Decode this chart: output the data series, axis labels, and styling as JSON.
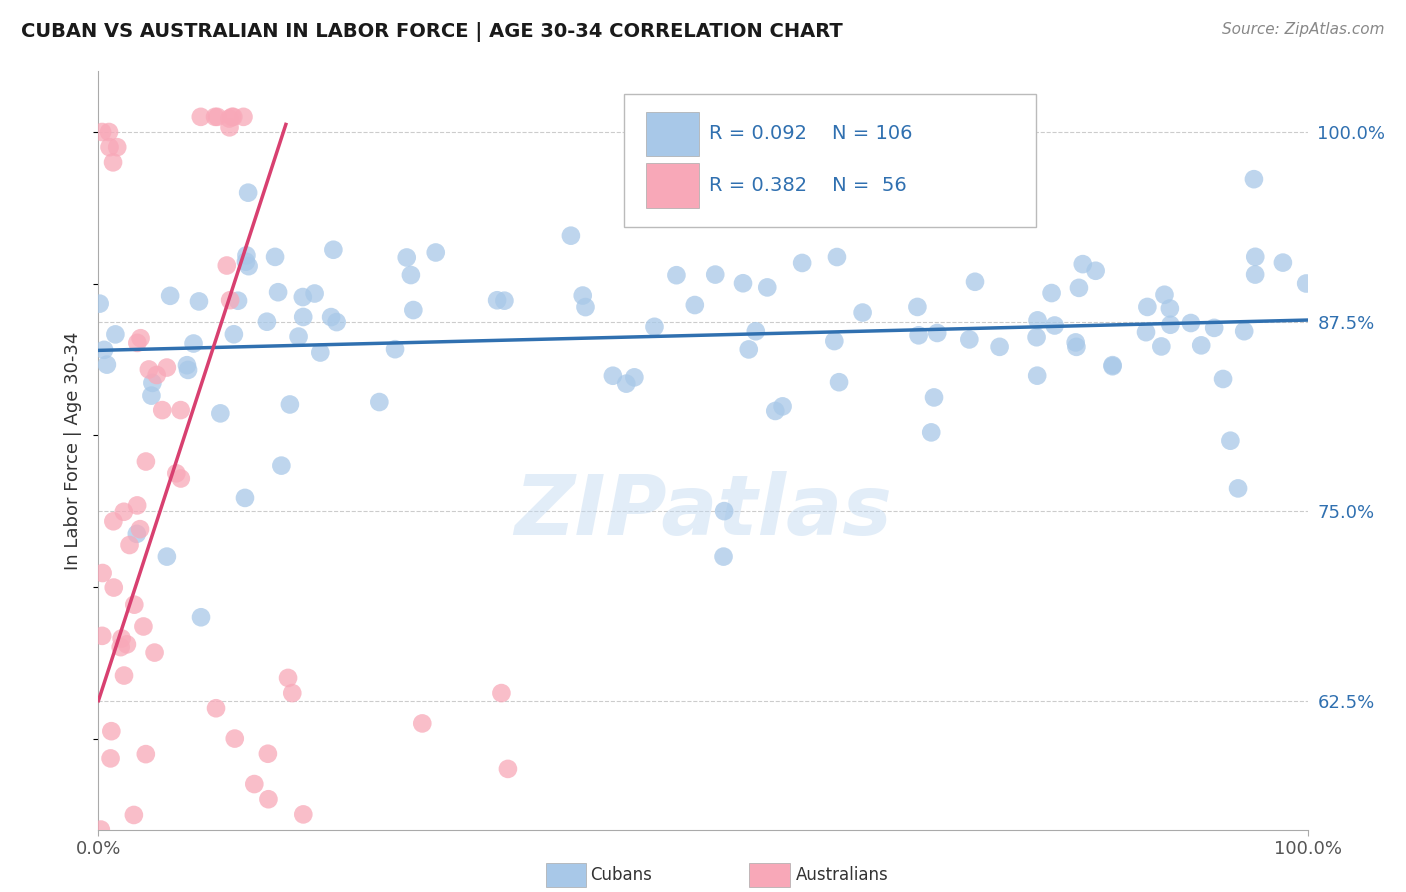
{
  "title": "CUBAN VS AUSTRALIAN IN LABOR FORCE | AGE 30-34 CORRELATION CHART",
  "source_text": "Source: ZipAtlas.com",
  "ylabel": "In Labor Force | Age 30-34",
  "xlim": [
    0.0,
    1.0
  ],
  "ylim": [
    0.54,
    1.04
  ],
  "yticks": [
    0.625,
    0.75,
    0.875,
    1.0
  ],
  "ytick_labels": [
    "62.5%",
    "75.0%",
    "87.5%",
    "100.0%"
  ],
  "xtick_labels": [
    "0.0%",
    "100.0%"
  ],
  "xticks": [
    0.0,
    1.0
  ],
  "legend_label1": "Cubans",
  "legend_label2": "Australians",
  "blue_color": "#a8c8e8",
  "pink_color": "#f8a8b8",
  "trend_blue": "#3070b0",
  "trend_pink": "#d84070",
  "watermark": "ZIPatlas",
  "blue_r": "0.092",
  "blue_n": "106",
  "pink_r": "0.382",
  "pink_n": "56",
  "seed": 99
}
